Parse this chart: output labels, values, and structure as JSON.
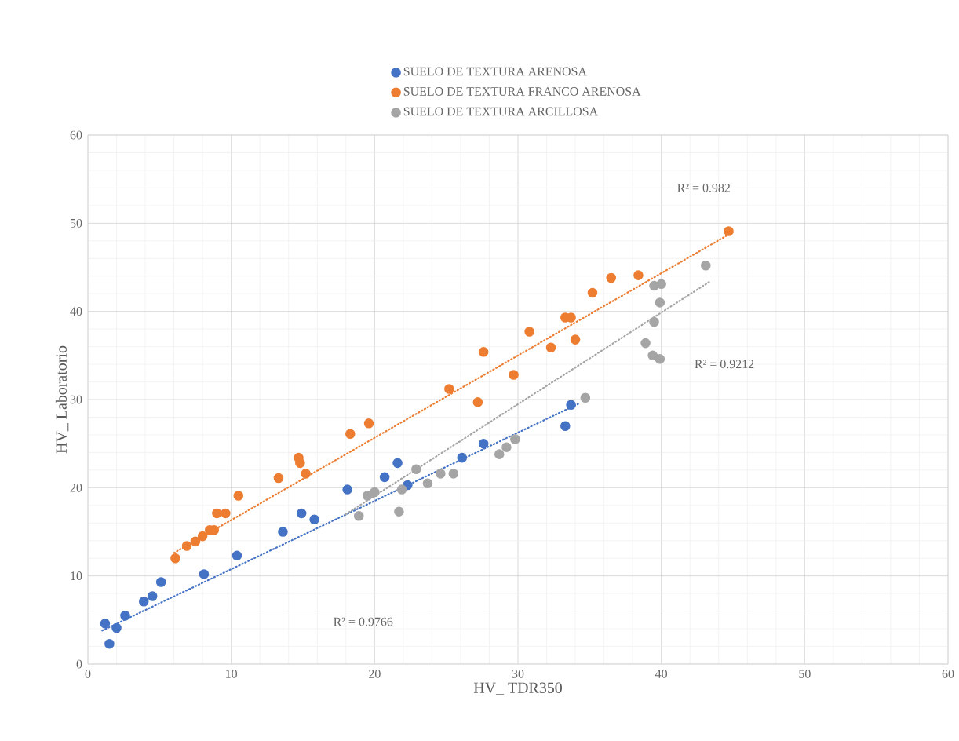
{
  "chart_data": {
    "type": "scatter",
    "xlabel": "HV_ TDR350",
    "ylabel": "HV_ Laboratorio",
    "xlim": [
      0,
      60
    ],
    "ylim": [
      0,
      60
    ],
    "xticks": [
      0,
      10,
      20,
      30,
      40,
      50,
      60
    ],
    "yticks": [
      0,
      10,
      20,
      30,
      40,
      50,
      60
    ],
    "grid": true,
    "legend": "top",
    "marker": "circle",
    "series": [
      {
        "name": "SUELO DE TEXTURA ARENOSA",
        "color": "#4472c4",
        "x": [
          1.2,
          1.5,
          2,
          2.6,
          3.9,
          4.5,
          5.1,
          8.1,
          10.4,
          13.6,
          14.9,
          15.8,
          18.1,
          20.7,
          21.6,
          22.3,
          26.1,
          27.6,
          33.3,
          33.7
        ],
        "values": [
          4.6,
          2.3,
          4.1,
          5.5,
          7.1,
          7.7,
          9.3,
          10.2,
          12.3,
          15,
          17.1,
          16.4,
          19.8,
          21.2,
          22.8,
          20.3,
          23.4,
          25,
          27,
          29.4
        ]
      },
      {
        "name": "SUELO DE TEXTURA FRANCO ARENOSA",
        "color": "#ed7d31",
        "x": [
          6.1,
          6.9,
          7.5,
          8,
          8.5,
          8.8,
          9,
          9.6,
          10.5,
          13.3,
          14.7,
          14.8,
          15.2,
          18.3,
          19.6,
          25.2,
          27.2,
          27.6,
          29.7,
          30.8,
          32.3,
          33.3,
          33.7,
          34,
          35.2,
          36.5,
          38.4,
          44.7
        ],
        "values": [
          12,
          13.4,
          13.9,
          14.5,
          15.2,
          15.2,
          17.1,
          17.1,
          19.1,
          21.1,
          23.4,
          22.8,
          21.6,
          26.1,
          27.3,
          31.2,
          29.7,
          35.4,
          32.8,
          37.7,
          35.9,
          39.3,
          39.3,
          36.8,
          42.1,
          43.8,
          44.1,
          49.1
        ]
      },
      {
        "name": "SUELO DE TEXTURA ARCILLOSA",
        "color": "#a5a5a5",
        "x": [
          18.9,
          19.5,
          20,
          21.7,
          21.9,
          22.9,
          23.7,
          24.6,
          25.5,
          28.7,
          29.2,
          29.8,
          34.7,
          38.9,
          39.4,
          39.9,
          39.5,
          39.9,
          39.5,
          40,
          43.1
        ],
        "values": [
          16.8,
          19.1,
          19.5,
          17.3,
          19.8,
          22.1,
          20.5,
          21.6,
          21.6,
          23.8,
          24.6,
          25.5,
          30.2,
          36.4,
          35,
          34.6,
          38.8,
          41,
          42.9,
          43.1,
          45.2
        ]
      },
      {
        "type": "line",
        "color": "#ed7d31",
        "line_style": "dotted",
        "marker": "none",
        "x": [
          6,
          45
        ],
        "values": [
          12.6,
          49
        ]
      },
      {
        "type": "line",
        "color": "#4472c4",
        "line_style": "dotted",
        "marker": "none",
        "x": [
          1,
          34.2
        ],
        "values": [
          3.8,
          29.5
        ]
      },
      {
        "type": "line",
        "color": "#a5a5a5",
        "line_style": "dotted",
        "marker": "none",
        "x": [
          18,
          43.4
        ],
        "values": [
          17,
          43.4
        ]
      }
    ],
    "annotations": [
      "R² = 0.982",
      "R² = 0.9212",
      "R² = 0.9766"
    ]
  }
}
